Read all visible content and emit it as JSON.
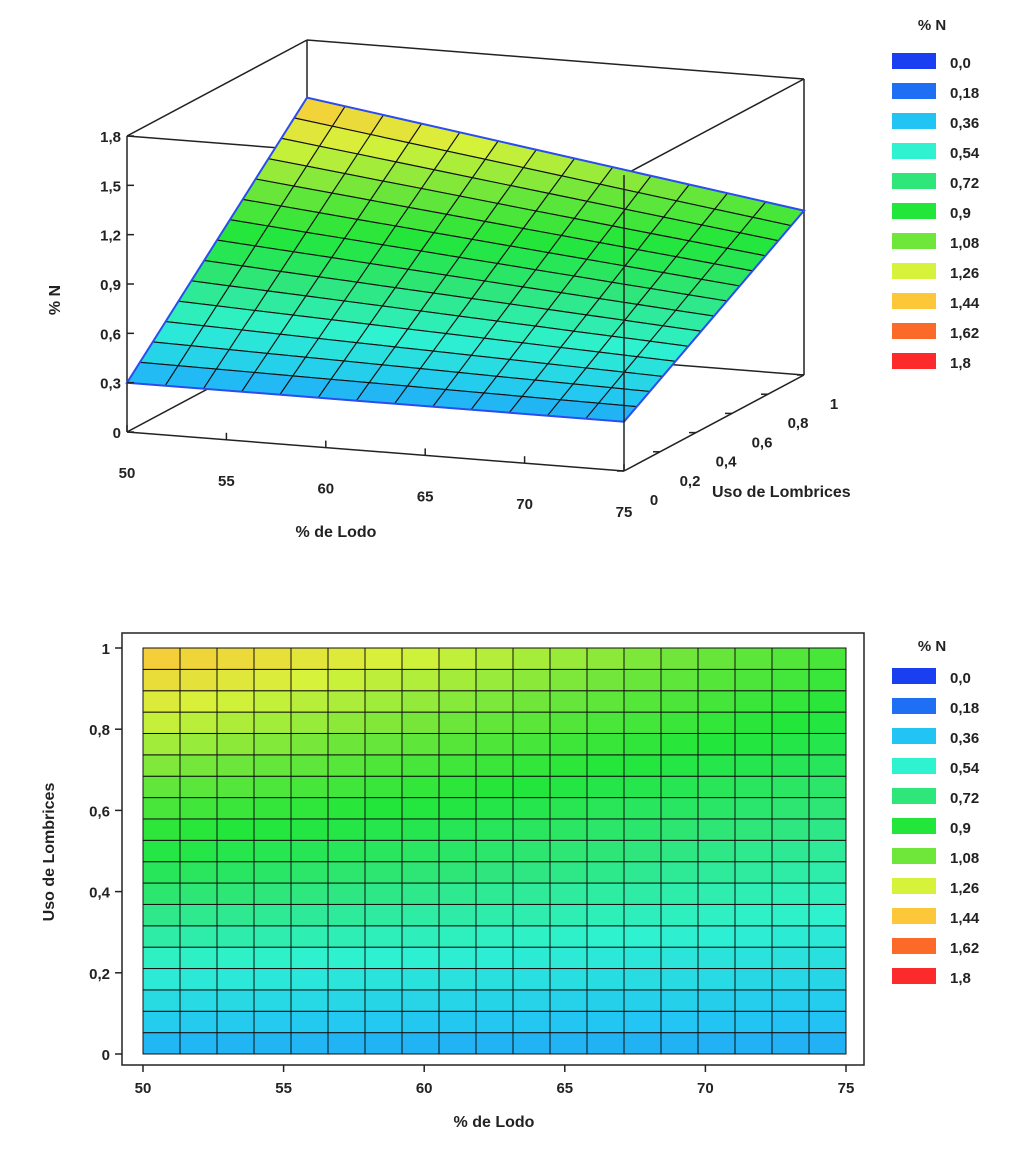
{
  "chart_data": [
    {
      "type": "surface3d",
      "zlabel": "% N",
      "xlabel": "% de Lodo",
      "ylabel": "Uso de Lombrices",
      "x_ticks": [
        "50",
        "55",
        "60",
        "65",
        "70",
        "75"
      ],
      "y_ticks": [
        "0",
        "0,2",
        "0,4",
        "0,6",
        "0,8",
        "1"
      ],
      "z_ticks": [
        "0",
        "0,3",
        "0,6",
        "0,9",
        "1,2",
        "1,5",
        "1,8"
      ],
      "xlim": [
        50,
        75
      ],
      "ylim": [
        0,
        1
      ],
      "zlim": [
        0,
        1.8
      ],
      "surface_corners": {
        "x50_y0": 0.3,
        "x75_y0": 0.3,
        "x50_y1": 1.45,
        "x75_y1": 1.0
      },
      "legend": {
        "title": "% N",
        "levels": [
          "0,0",
          "0,18",
          "0,36",
          "0,54",
          "0,72",
          "0,9",
          "1,08",
          "1,26",
          "1,44",
          "1,62",
          "1,8"
        ],
        "colors": [
          "#1a3ff0",
          "#1f6ff5",
          "#22c4f4",
          "#2ef2d0",
          "#2ee67a",
          "#22e63a",
          "#6ee63a",
          "#d6f23a",
          "#fcc83a",
          "#fc6a2a",
          "#fc2a2a"
        ]
      }
    },
    {
      "type": "heatmap",
      "xlabel": "% de Lodo",
      "ylabel": "Uso de Lombrices",
      "x_ticks": [
        "50",
        "55",
        "60",
        "65",
        "70",
        "75"
      ],
      "y_ticks": [
        "0",
        "0,2",
        "0,4",
        "0,6",
        "0,8",
        "1"
      ],
      "xlim": [
        50,
        75
      ],
      "ylim": [
        0,
        1
      ],
      "grid": true,
      "legend": {
        "title": "% N",
        "levels": [
          "0,0",
          "0,18",
          "0,36",
          "0,54",
          "0,72",
          "0,9",
          "1,08",
          "1,26",
          "1,44",
          "1,62",
          "1,8"
        ],
        "colors": [
          "#1a3ff0",
          "#1f6ff5",
          "#22c4f4",
          "#2ef2d0",
          "#2ee67a",
          "#22e63a",
          "#6ee63a",
          "#d6f23a",
          "#fcc83a",
          "#fc6a2a",
          "#fc2a2a"
        ]
      }
    }
  ]
}
